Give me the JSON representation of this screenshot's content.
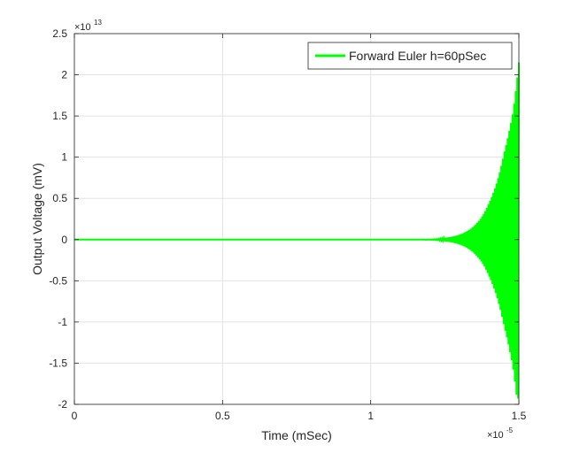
{
  "chart_data": {
    "type": "line",
    "title": "",
    "xlabel": "Time (mSec)",
    "ylabel": "Output Voltage (mV)",
    "x_exponent_label": "×10",
    "x_exponent_power": "-5",
    "y_exponent_label": "×10",
    "y_exponent_power": "13",
    "xlim": [
      0,
      1.5e-05
    ],
    "ylim": [
      -20000000000000.0,
      25000000000000.0
    ],
    "x_ticks": [
      0,
      5e-06,
      1e-05,
      1.5e-05
    ],
    "x_tick_labels": [
      "0",
      "0.5",
      "1",
      "1.5"
    ],
    "y_ticks": [
      -20000000000000.0,
      -15000000000000.0,
      -10000000000000.0,
      -5000000000000.0,
      0,
      5000000000000.0,
      10000000000000.0,
      15000000000000.0,
      20000000000000.0,
      25000000000000.0
    ],
    "y_tick_labels": [
      "-2",
      "-1.5",
      "-1",
      "-0.5",
      "0",
      "0.5",
      "1",
      "1.5",
      "2",
      "2.5"
    ],
    "grid": true,
    "legend_position": "top-right",
    "series": [
      {
        "name": "Forward Euler h=60pSec",
        "color": "#00ff00",
        "description_values": {
          "model": "alternating-sign oscillation with exponentially growing envelope",
          "flat_until_x": 1.2e-05,
          "envelope_points": [
            [
              1.2e-05,
              20000000000.0
            ],
            [
              1.25e-05,
              200000000000.0
            ],
            [
              1.3e-05,
              600000000000.0
            ],
            [
              1.35e-05,
              1700000000000.0
            ],
            [
              1.4e-05,
              4500000000000.0
            ],
            [
              1.45e-05,
              10500000000000.0
            ],
            [
              1.48e-05,
              15500000000000.0
            ],
            [
              1.5e-05,
              21500000000000.0
            ]
          ],
          "final_max": 21500000000000.0,
          "final_min": -19300000000000.0
        }
      }
    ]
  }
}
